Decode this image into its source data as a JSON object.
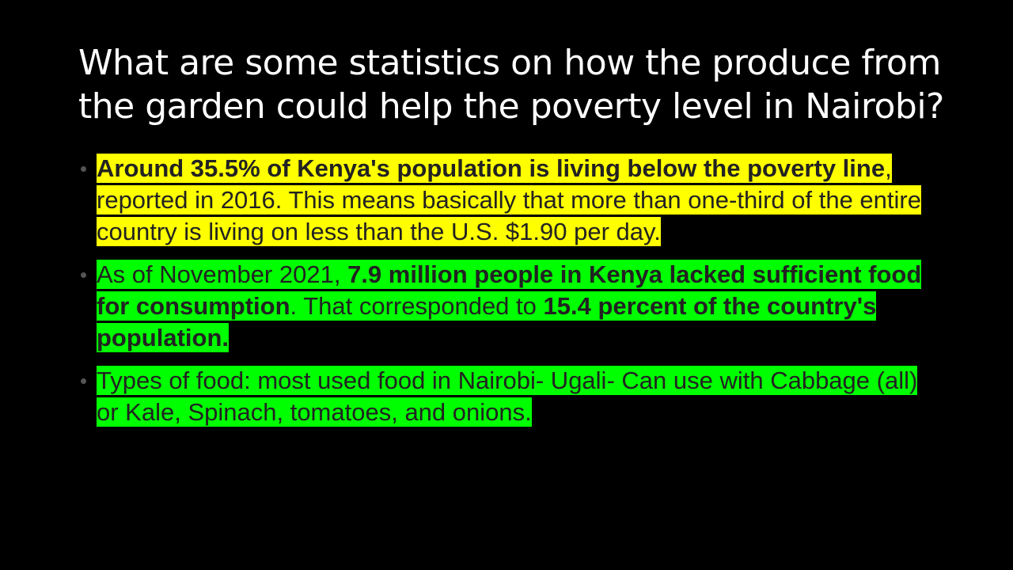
{
  "title": "What are some statistics on how the produce from the garden could help the poverty level in Nairobi?",
  "bullets": [
    {
      "highlight": "#ffff00",
      "runs": [
        {
          "text": "Around 35.5% of Kenya's population is living below the poverty line",
          "bold": true
        },
        {
          "text": ", reported in 2016. This means basically that more than one-third of the entire country is living on less than the U.S. $1.90 per day.",
          "bold": false
        }
      ]
    },
    {
      "highlight": "#00ff00",
      "runs": [
        {
          "text": "As of November 2021, ",
          "bold": false
        },
        {
          "text": "7.9 million people in Kenya lacked sufficient food for consumption",
          "bold": true
        },
        {
          "text": ". That corresponded to ",
          "bold": false
        },
        {
          "text": "15.4 percent of the country's population.",
          "bold": true
        }
      ]
    },
    {
      "highlight": "#00ff00",
      "runs": [
        {
          "text": "Types of food: most used food in Nairobi- Ugali- Can use with Cabbage (all) or Kale, Spinach, tomatoes, and onions.",
          "bold": false
        }
      ]
    }
  ]
}
